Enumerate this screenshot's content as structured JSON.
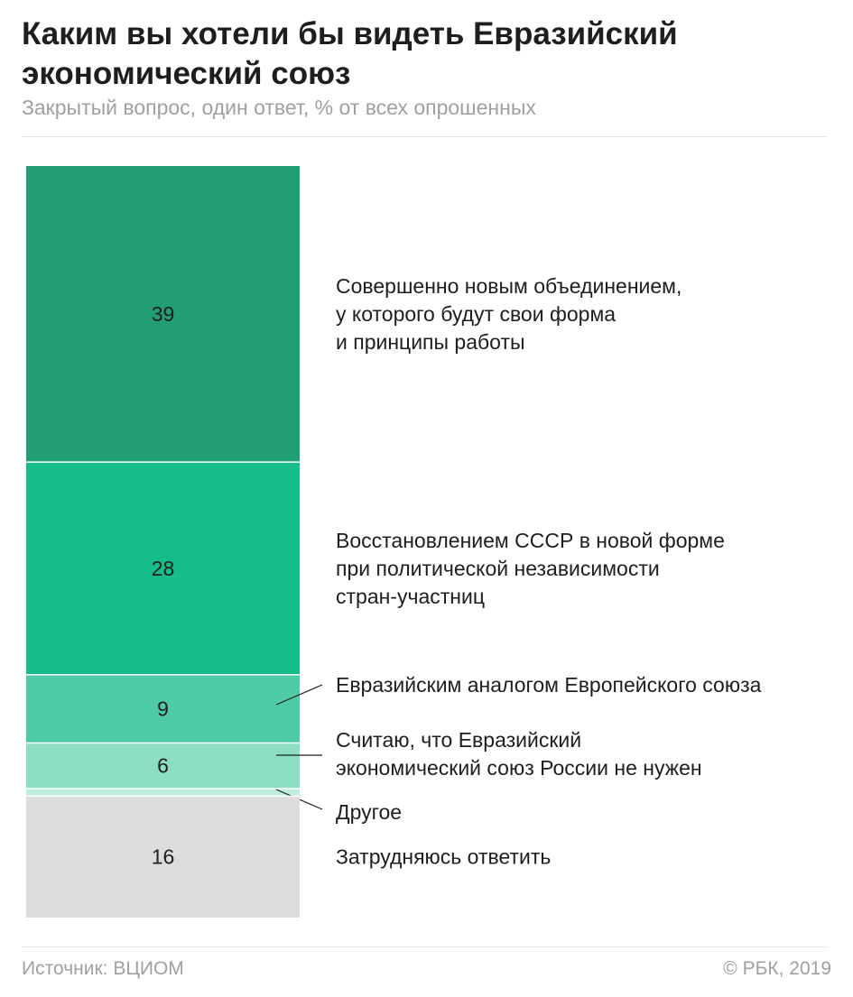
{
  "header": {
    "title_lines": [
      "Каким вы хотели бы видеть Евразийский",
      "экономический союз"
    ],
    "subtitle": "Закрытый вопрос, один ответ, % от всех опрошенных"
  },
  "chart_data": {
    "type": "bar",
    "orientation": "stacked-vertical-single",
    "categories": [
      "Совершенно новым объединением, у которого будут свои форма и принципы работы",
      "Восстановлением СССР в новой форме при политической независимости стран-участниц",
      "Евразийским аналогом Европейского союза",
      "Считаю, что Евразийский экономический союз России не нужен",
      "Другое",
      "Затрудняюсь ответить"
    ],
    "segments": [
      {
        "value": 39,
        "value_label": "39",
        "label_lines": [
          "Совершенно новым объединением,",
          "у которого будут свои форма",
          "и принципы работы"
        ],
        "color": "#219e75"
      },
      {
        "value": 28,
        "value_label": "28",
        "label_lines": [
          "Восстановлением СССР в новой форме",
          "при политической независимости",
          "стран-участниц"
        ],
        "color": "#15bd89"
      },
      {
        "value": 9,
        "value_label": "9",
        "label_lines": [
          "Евразийским аналогом Европейского союза"
        ],
        "color": "#4ecca5"
      },
      {
        "value": 6,
        "value_label": "6",
        "label_lines": [
          "Считаю, что Евразийский",
          "экономический союз России не нужен"
        ],
        "color": "#8cdec5"
      },
      {
        "value": 1,
        "value_label": "",
        "label_lines": [
          "Другое"
        ],
        "color": "#bdeedd"
      },
      {
        "value": 16,
        "value_label": "16",
        "label_lines": [
          "Затрудняюсь ответить"
        ],
        "color": "#dcdcdc"
      }
    ],
    "total": 99
  },
  "footer": {
    "source": "Источник: ВЦИОМ",
    "copyright": "© РБК, 2019"
  }
}
